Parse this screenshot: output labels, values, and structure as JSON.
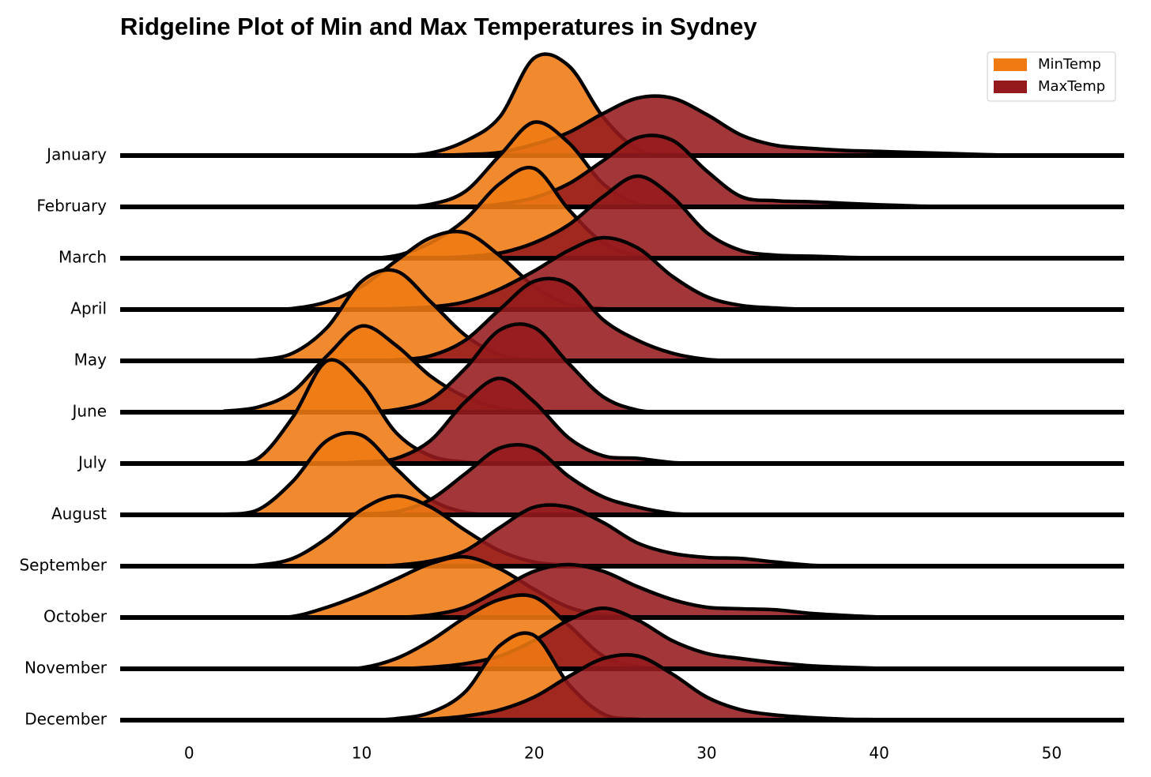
{
  "chart_data": {
    "type": "ridgeline",
    "title": "Ridgeline Plot of Min and Max Temperatures in Sydney",
    "x": [
      2,
      4,
      6,
      8,
      10,
      12,
      14,
      16,
      18,
      20,
      22,
      24,
      26,
      28,
      30,
      32,
      34,
      36,
      38,
      40,
      42,
      44,
      46,
      48
    ],
    "xlim": [
      -4,
      54.2
    ],
    "xticks": [
      0,
      10,
      20,
      30,
      40,
      50
    ],
    "legend": "upper right",
    "categories": [
      "January",
      "February",
      "March",
      "April",
      "May",
      "June",
      "July",
      "August",
      "September",
      "October",
      "November",
      "December"
    ],
    "series": [
      {
        "name": "MinTemp",
        "color": "#ef7a12",
        "values": [
          [
            0,
            0,
            0,
            0,
            0,
            0,
            0.05,
            0.28,
            0.75,
            1.9,
            1.75,
            0.75,
            0.12,
            0.02,
            0,
            0,
            0,
            0,
            0,
            0,
            0,
            0,
            0,
            0
          ],
          [
            0,
            0,
            0,
            0,
            0,
            0,
            0.05,
            0.3,
            1.0,
            1.65,
            1.25,
            0.45,
            0.06,
            0,
            0,
            0,
            0,
            0,
            0,
            0,
            0,
            0,
            0,
            0
          ],
          [
            0,
            0,
            0,
            0,
            0,
            0.05,
            0.3,
            0.75,
            1.45,
            1.75,
            0.95,
            0.3,
            0.05,
            0,
            0,
            0,
            0,
            0,
            0,
            0,
            0,
            0,
            0,
            0
          ],
          [
            0,
            0,
            0.02,
            0.15,
            0.45,
            0.95,
            1.4,
            1.5,
            1.05,
            0.45,
            0.1,
            0.02,
            0,
            0,
            0,
            0,
            0,
            0,
            0,
            0,
            0,
            0,
            0,
            0
          ],
          [
            0,
            0.02,
            0.15,
            0.65,
            1.55,
            1.75,
            1.15,
            0.5,
            0.12,
            0.02,
            0,
            0,
            0,
            0,
            0,
            0,
            0,
            0,
            0,
            0,
            0,
            0,
            0,
            0
          ],
          [
            0.02,
            0.1,
            0.4,
            1.1,
            1.68,
            1.3,
            0.7,
            0.3,
            0.08,
            0.02,
            0,
            0,
            0,
            0,
            0,
            0,
            0,
            0,
            0,
            0,
            0,
            0,
            0,
            0
          ],
          [
            0,
            0.1,
            0.9,
            2.0,
            1.55,
            0.6,
            0.15,
            0.03,
            0,
            0,
            0,
            0,
            0,
            0,
            0,
            0,
            0,
            0,
            0,
            0,
            0,
            0,
            0,
            0
          ],
          [
            0.01,
            0.1,
            0.65,
            1.45,
            1.55,
            0.9,
            0.3,
            0.05,
            0,
            0,
            0,
            0,
            0,
            0,
            0,
            0,
            0,
            0,
            0,
            0,
            0,
            0,
            0,
            0
          ],
          [
            0,
            0.02,
            0.15,
            0.55,
            1.1,
            1.37,
            1.15,
            0.7,
            0.3,
            0.08,
            0.02,
            0,
            0,
            0,
            0,
            0,
            0,
            0,
            0,
            0,
            0,
            0,
            0,
            0
          ],
          [
            0,
            0,
            0.02,
            0.2,
            0.45,
            0.75,
            1.05,
            1.18,
            0.95,
            0.55,
            0.2,
            0.05,
            0,
            0,
            0,
            0,
            0,
            0,
            0,
            0,
            0,
            0,
            0,
            0
          ],
          [
            0,
            0,
            0,
            0,
            0.02,
            0.2,
            0.55,
            1.0,
            1.35,
            1.4,
            0.85,
            0.25,
            0.04,
            0,
            0,
            0,
            0,
            0,
            0,
            0,
            0,
            0,
            0,
            0
          ],
          [
            0,
            0,
            0,
            0,
            0,
            0.03,
            0.15,
            0.55,
            1.45,
            1.65,
            0.7,
            0.12,
            0.02,
            0,
            0,
            0,
            0,
            0,
            0,
            0,
            0,
            0,
            0,
            0
          ]
        ]
      },
      {
        "name": "MaxTemp",
        "color": "#951a1d",
        "values": [
          [
            0,
            0,
            0,
            0,
            0,
            0,
            0,
            0.02,
            0.06,
            0.22,
            0.45,
            0.82,
            1.12,
            1.12,
            0.8,
            0.4,
            0.2,
            0.14,
            0.1,
            0.08,
            0.06,
            0.04,
            0.02,
            0
          ],
          [
            0,
            0,
            0,
            0,
            0,
            0,
            0,
            0,
            0.05,
            0.18,
            0.45,
            0.9,
            1.35,
            1.3,
            0.7,
            0.2,
            0.12,
            0.1,
            0.07,
            0.04,
            0.02,
            0,
            0,
            0
          ],
          [
            0,
            0,
            0,
            0,
            0,
            0,
            0,
            0.03,
            0.1,
            0.3,
            0.65,
            1.2,
            1.6,
            1.2,
            0.5,
            0.15,
            0.06,
            0.04,
            0.02,
            0,
            0,
            0,
            0,
            0
          ],
          [
            0,
            0,
            0,
            0,
            0,
            0.02,
            0.05,
            0.15,
            0.4,
            0.75,
            1.15,
            1.4,
            1.2,
            0.65,
            0.25,
            0.08,
            0.03,
            0,
            0,
            0,
            0,
            0,
            0,
            0
          ],
          [
            0,
            0,
            0,
            0,
            0,
            0.02,
            0.1,
            0.4,
            1.0,
            1.55,
            1.5,
            0.8,
            0.4,
            0.15,
            0.03,
            0,
            0,
            0,
            0,
            0,
            0,
            0,
            0,
            0
          ],
          [
            0,
            0,
            0,
            0,
            0,
            0.05,
            0.25,
            0.85,
            1.6,
            1.65,
            0.95,
            0.3,
            0.04,
            0,
            0,
            0,
            0,
            0,
            0,
            0,
            0,
            0,
            0,
            0
          ],
          [
            0,
            0,
            0,
            0,
            0.03,
            0.1,
            0.45,
            1.2,
            1.66,
            1.2,
            0.5,
            0.15,
            0.1,
            0.02,
            0,
            0,
            0,
            0,
            0,
            0,
            0,
            0,
            0,
            0
          ],
          [
            0,
            0,
            0,
            0,
            0.02,
            0.06,
            0.3,
            0.8,
            1.3,
            1.3,
            0.75,
            0.35,
            0.15,
            0.03,
            0,
            0,
            0,
            0,
            0,
            0,
            0,
            0,
            0,
            0
          ],
          [
            0,
            0,
            0,
            0,
            0,
            0.02,
            0.1,
            0.3,
            0.75,
            1.15,
            1.15,
            0.85,
            0.45,
            0.25,
            0.17,
            0.15,
            0.08,
            0.02,
            0,
            0,
            0,
            0,
            0,
            0
          ],
          [
            0,
            0,
            0,
            0,
            0,
            0,
            0.05,
            0.2,
            0.55,
            0.9,
            1.03,
            0.9,
            0.6,
            0.35,
            0.2,
            0.17,
            0.15,
            0.08,
            0.04,
            0.01,
            0,
            0,
            0,
            0
          ],
          [
            0,
            0,
            0,
            0,
            0,
            0,
            0.03,
            0.1,
            0.25,
            0.55,
            0.95,
            1.18,
            0.95,
            0.55,
            0.3,
            0.2,
            0.12,
            0.06,
            0.03,
            0.01,
            0,
            0,
            0,
            0
          ],
          [
            0,
            0,
            0,
            0,
            0,
            0,
            0.02,
            0.08,
            0.2,
            0.45,
            0.85,
            1.2,
            1.25,
            0.9,
            0.45,
            0.2,
            0.1,
            0.05,
            0.02,
            0.01,
            0,
            0,
            0,
            0
          ]
        ]
      }
    ]
  }
}
